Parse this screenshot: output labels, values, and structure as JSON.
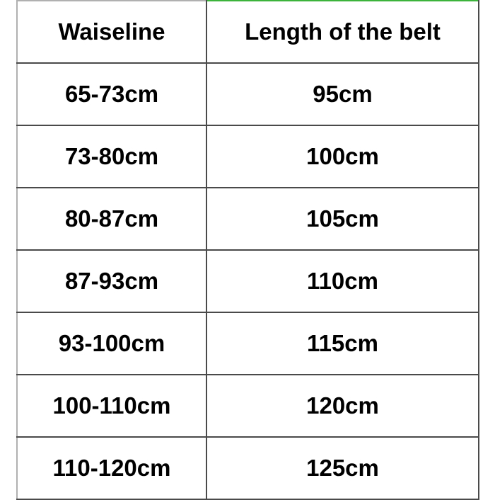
{
  "table": {
    "headers": [
      "Waiseline",
      "Length of the belt"
    ],
    "rows": [
      [
        "65-73cm",
        "95cm"
      ],
      [
        "73-80cm",
        "100cm"
      ],
      [
        "80-87cm",
        "105cm"
      ],
      [
        "87-93cm",
        "110cm"
      ],
      [
        "93-100cm",
        "115cm"
      ],
      [
        "100-110cm",
        "120cm"
      ],
      [
        "110-120cm",
        "125cm"
      ]
    ]
  },
  "colors": {
    "border": "#4a4a4a",
    "selection_accent": "#3cb43c"
  }
}
